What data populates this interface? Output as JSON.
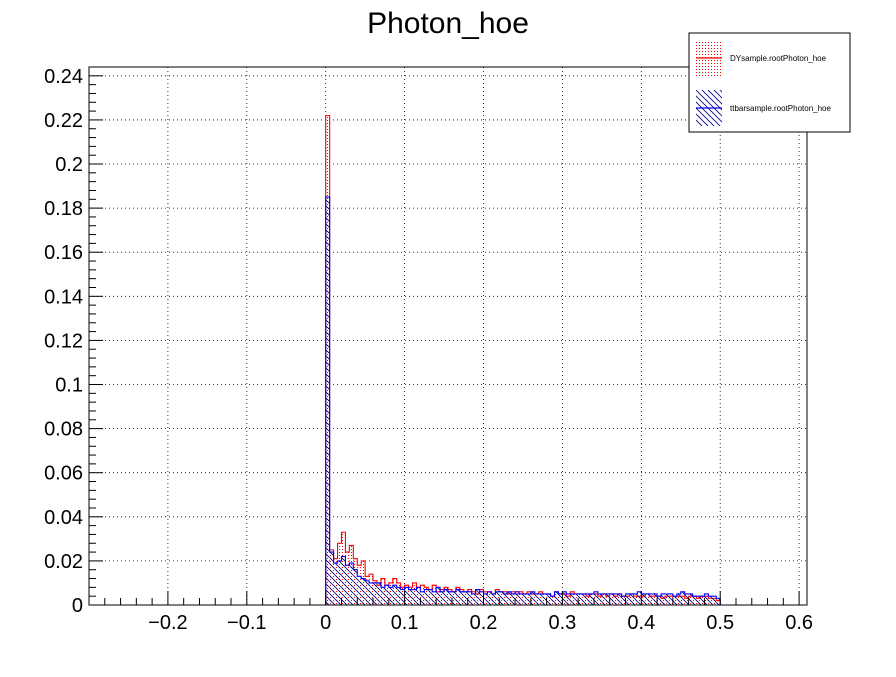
{
  "chart_data": {
    "type": "histogram",
    "title": "Photon_hoe",
    "xlabel": "",
    "ylabel": "",
    "xlim": [
      -0.3,
      0.61
    ],
    "ylim": [
      0,
      0.244
    ],
    "grid": true,
    "legend_placement": "top-right",
    "x_ticks": [
      -0.2,
      -0.1,
      0,
      0.1,
      0.2,
      0.3,
      0.4,
      0.5,
      0.6
    ],
    "x_tick_labels": [
      "−0.2",
      "−0.1",
      "0",
      "0.1",
      "0.2",
      "0.3",
      "0.4",
      "0.5",
      "0.6"
    ],
    "y_ticks": [
      0,
      0.02,
      0.04,
      0.06,
      0.08,
      0.1,
      0.12,
      0.14,
      0.16,
      0.18,
      0.2,
      0.22,
      0.24
    ],
    "y_tick_labels": [
      "0",
      "0.02",
      "0.04",
      "0.06",
      "0.08",
      "0.1",
      "0.12",
      "0.14",
      "0.16",
      "0.18",
      "0.2",
      "0.22",
      "0.24"
    ],
    "bin_width": 0.005,
    "bin_start": 0,
    "series": [
      {
        "name": "DYsample.rootPhoton_hoe",
        "color": "#ff0000",
        "fill": "dots",
        "values": [
          0.222,
          0.025,
          0.021,
          0.028,
          0.033,
          0.024,
          0.027,
          0.021,
          0.018,
          0.02,
          0.013,
          0.014,
          0.011,
          0.009,
          0.012,
          0.009,
          0.01,
          0.012,
          0.01,
          0.008,
          0.009,
          0.008,
          0.01,
          0.008,
          0.009,
          0.008,
          0.007,
          0.009,
          0.006,
          0.007,
          0.008,
          0.007,
          0.006,
          0.008,
          0.007,
          0.006,
          0.007,
          0.006,
          0.005,
          0.007,
          0.006,
          0.006,
          0.005,
          0.007,
          0.006,
          0.006,
          0.005,
          0.006,
          0.005,
          0.006,
          0.005,
          0.006,
          0.005,
          0.005,
          0.006,
          0.005,
          0.005,
          0.004,
          0.006,
          0.005,
          0.005,
          0.004,
          0.006,
          0.005,
          0.005,
          0.005,
          0.004,
          0.005,
          0.005,
          0.004,
          0.005,
          0.004,
          0.005,
          0.004,
          0.005,
          0.004,
          0.004,
          0.005,
          0.004,
          0.004,
          0.004,
          0.005,
          0.004,
          0.004,
          0.004,
          0.003,
          0.004,
          0.004,
          0.004,
          0.004,
          0.004,
          0.003,
          0.004,
          0.004,
          0.003,
          0.004,
          0.004,
          0.003,
          0.003,
          0.002
        ]
      },
      {
        "name": "ttbarsample.rootPhoton_hoe",
        "color": "#0000ff",
        "fill": "hatch",
        "values": [
          0.185,
          0.024,
          0.019,
          0.02,
          0.022,
          0.018,
          0.019,
          0.016,
          0.013,
          0.012,
          0.011,
          0.01,
          0.01,
          0.01,
          0.008,
          0.009,
          0.008,
          0.009,
          0.008,
          0.007,
          0.008,
          0.007,
          0.007,
          0.008,
          0.006,
          0.007,
          0.007,
          0.006,
          0.008,
          0.006,
          0.007,
          0.006,
          0.006,
          0.007,
          0.006,
          0.006,
          0.006,
          0.005,
          0.007,
          0.006,
          0.005,
          0.006,
          0.005,
          0.006,
          0.006,
          0.005,
          0.006,
          0.005,
          0.006,
          0.005,
          0.005,
          0.005,
          0.006,
          0.005,
          0.005,
          0.005,
          0.005,
          0.004,
          0.006,
          0.005,
          0.006,
          0.005,
          0.005,
          0.005,
          0.005,
          0.005,
          0.005,
          0.005,
          0.006,
          0.005,
          0.005,
          0.005,
          0.005,
          0.005,
          0.005,
          0.004,
          0.005,
          0.005,
          0.005,
          0.006,
          0.005,
          0.005,
          0.005,
          0.005,
          0.004,
          0.005,
          0.005,
          0.005,
          0.004,
          0.005,
          0.006,
          0.005,
          0.005,
          0.004,
          0.004,
          0.004,
          0.005,
          0.004,
          0.004,
          0.003
        ]
      }
    ]
  }
}
